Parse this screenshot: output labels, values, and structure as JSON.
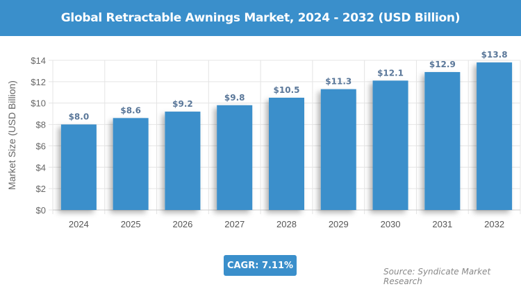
{
  "chart_data": {
    "type": "bar",
    "title": "Global Retractable Awnings Market, 2024 - 2032 (USD Billion)",
    "categories": [
      "2024",
      "2025",
      "2026",
      "2027",
      "2028",
      "2029",
      "2030",
      "2031",
      "2032"
    ],
    "values": [
      8.0,
      8.6,
      9.2,
      9.8,
      10.5,
      11.3,
      12.1,
      12.9,
      13.8
    ],
    "data_labels": [
      "$8.0",
      "$8.6",
      "$9.2",
      "$9.8",
      "$10.5",
      "$11.3",
      "$12.1",
      "$12.9",
      "$13.8"
    ],
    "ylabel": "Market Size (USD Billion)",
    "xlabel": "",
    "ylim": [
      0,
      14
    ],
    "yticks": [
      "$0",
      "$2",
      "$4",
      "$6",
      "$8",
      "$10",
      "$12",
      "$14"
    ],
    "grid": true,
    "bar_color": "#3a8fcb",
    "label_color": "#5a7799"
  },
  "cagr": "CAGR: 7.11%",
  "source": "Source: Syndicate Market Research"
}
